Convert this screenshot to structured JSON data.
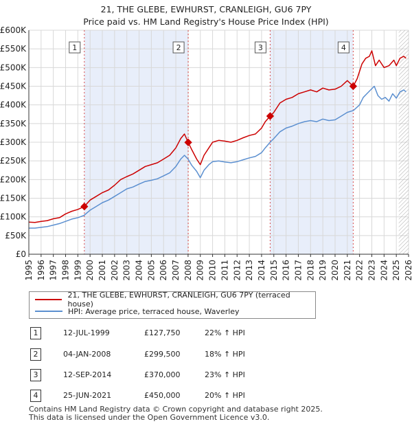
{
  "header": {
    "title_line1": "21, THE GLEBE, EWHURST, CRANLEIGH, GU6 7PY",
    "title_line2": "Price paid vs. HM Land Registry's House Price Index (HPI)"
  },
  "colors": {
    "property_line": "#cc0000",
    "hpi_line": "#5b8fd0",
    "shade": "#e8eefa",
    "grid": "#d8d8d8",
    "sale_vline": "#cc0000",
    "marker_border": "#555555"
  },
  "chart_data": {
    "type": "line",
    "title": "Price paid vs. HM Land Registry's House Price Index (HPI)",
    "xlabel": "",
    "ylabel": "",
    "xlim": [
      1995,
      2026
    ],
    "ylim": [
      0,
      600000
    ],
    "x_ticks": [
      "1995",
      "1996",
      "1997",
      "1998",
      "1999",
      "2000",
      "2001",
      "2002",
      "2003",
      "2004",
      "2005",
      "2006",
      "2007",
      "2008",
      "2009",
      "2010",
      "2011",
      "2012",
      "2013",
      "2014",
      "2015",
      "2016",
      "2017",
      "2018",
      "2019",
      "2020",
      "2021",
      "2022",
      "2023",
      "2024",
      "2025",
      "2026"
    ],
    "y_ticks": [
      {
        "value": 0,
        "label": "£0"
      },
      {
        "value": 50000,
        "label": "£50K"
      },
      {
        "value": 100000,
        "label": "£100K"
      },
      {
        "value": 150000,
        "label": "£150K"
      },
      {
        "value": 200000,
        "label": "£200K"
      },
      {
        "value": 250000,
        "label": "£250K"
      },
      {
        "value": 300000,
        "label": "£300K"
      },
      {
        "value": 350000,
        "label": "£350K"
      },
      {
        "value": 400000,
        "label": "£400K"
      },
      {
        "value": 450000,
        "label": "£450K"
      },
      {
        "value": 500000,
        "label": "£500K"
      },
      {
        "value": 550000,
        "label": "£550K"
      },
      {
        "value": 600000,
        "label": "£600K"
      }
    ],
    "grid": true,
    "shaded_ranges": [
      [
        1999.53,
        2008.01
      ],
      [
        2014.7,
        2021.48
      ]
    ],
    "future_hatch_from": 2025.2,
    "series": [
      {
        "name": "21, THE GLEBE, EWHURST, CRANLEIGH, GU6 7PY (terraced house)",
        "color": "#cc0000",
        "x": [
          1995.0,
          1995.5,
          1996.0,
          1996.5,
          1997.0,
          1997.5,
          1998.0,
          1998.5,
          1999.0,
          1999.53,
          2000.0,
          2000.5,
          2001.0,
          2001.5,
          2002.0,
          2002.5,
          2003.0,
          2003.5,
          2004.0,
          2004.5,
          2005.0,
          2005.5,
          2006.0,
          2006.5,
          2007.0,
          2007.4,
          2007.7,
          2008.01,
          2008.3,
          2008.7,
          2009.0,
          2009.3,
          2009.7,
          2010.0,
          2010.5,
          2011.0,
          2011.5,
          2012.0,
          2012.5,
          2013.0,
          2013.5,
          2014.0,
          2014.3,
          2014.7,
          2015.0,
          2015.5,
          2016.0,
          2016.5,
          2017.0,
          2017.5,
          2018.0,
          2018.5,
          2019.0,
          2019.5,
          2020.0,
          2020.5,
          2021.0,
          2021.48,
          2021.8,
          2022.2,
          2022.5,
          2022.8,
          2023.0,
          2023.3,
          2023.6,
          2024.0,
          2024.4,
          2024.8,
          2025.0,
          2025.3,
          2025.6,
          2025.8
        ],
        "y": [
          86000,
          85000,
          88000,
          90000,
          95000,
          98000,
          108000,
          115000,
          120000,
          127750,
          145000,
          155000,
          165000,
          172000,
          185000,
          200000,
          208000,
          215000,
          225000,
          235000,
          240000,
          245000,
          255000,
          265000,
          285000,
          310000,
          322000,
          299500,
          280000,
          255000,
          240000,
          265000,
          285000,
          300000,
          305000,
          303000,
          300000,
          305000,
          312000,
          318000,
          322000,
          338000,
          355000,
          370000,
          380000,
          405000,
          415000,
          420000,
          430000,
          435000,
          440000,
          435000,
          445000,
          440000,
          442000,
          450000,
          465000,
          450000,
          470000,
          510000,
          525000,
          530000,
          545000,
          505000,
          520000,
          500000,
          505000,
          520000,
          505000,
          525000,
          530000,
          525000
        ]
      },
      {
        "name": "HPI: Average price, terraced house, Waverley",
        "color": "#5b8fd0",
        "x": [
          1995.0,
          1995.5,
          1996.0,
          1996.5,
          1997.0,
          1997.5,
          1998.0,
          1998.5,
          1999.0,
          1999.5,
          2000.0,
          2000.5,
          2001.0,
          2001.5,
          2002.0,
          2002.5,
          2003.0,
          2003.5,
          2004.0,
          2004.5,
          2005.0,
          2005.5,
          2006.0,
          2006.5,
          2007.0,
          2007.4,
          2007.7,
          2008.0,
          2008.3,
          2008.7,
          2009.0,
          2009.3,
          2009.7,
          2010.0,
          2010.5,
          2011.0,
          2011.5,
          2012.0,
          2012.5,
          2013.0,
          2013.5,
          2014.0,
          2014.3,
          2014.7,
          2015.0,
          2015.5,
          2016.0,
          2016.5,
          2017.0,
          2017.5,
          2018.0,
          2018.5,
          2019.0,
          2019.5,
          2020.0,
          2020.5,
          2021.0,
          2021.5,
          2022.0,
          2022.3,
          2022.6,
          2022.9,
          2023.2,
          2023.5,
          2023.8,
          2024.1,
          2024.4,
          2024.7,
          2025.0,
          2025.3,
          2025.6,
          2025.8
        ],
        "y": [
          70000,
          70000,
          72000,
          74000,
          78000,
          82000,
          88000,
          94000,
          98000,
          104000,
          118000,
          128000,
          138000,
          145000,
          155000,
          165000,
          175000,
          180000,
          188000,
          195000,
          198000,
          202000,
          210000,
          218000,
          235000,
          255000,
          265000,
          255000,
          238000,
          222000,
          205000,
          225000,
          240000,
          248000,
          250000,
          247000,
          245000,
          248000,
          253000,
          258000,
          262000,
          272000,
          285000,
          300000,
          310000,
          328000,
          338000,
          343000,
          350000,
          355000,
          358000,
          355000,
          362000,
          358000,
          360000,
          370000,
          380000,
          385000,
          400000,
          420000,
          430000,
          440000,
          450000,
          425000,
          415000,
          420000,
          410000,
          430000,
          418000,
          435000,
          440000,
          435000
        ]
      }
    ],
    "sales": [
      {
        "id": "1",
        "date": "12-JUL-1999",
        "x": 1999.53,
        "price_label": "£127,750",
        "price": 127750,
        "hpi_pct": "22% ↑ HPI"
      },
      {
        "id": "2",
        "date": "04-JAN-2008",
        "x": 2008.01,
        "price_label": "£299,500",
        "price": 299500,
        "hpi_pct": "18% ↑ HPI"
      },
      {
        "id": "3",
        "date": "12-SEP-2014",
        "x": 2014.7,
        "price_label": "£370,000",
        "price": 370000,
        "hpi_pct": "23% ↑ HPI"
      },
      {
        "id": "4",
        "date": "25-JUN-2021",
        "x": 2021.48,
        "price_label": "£450,000",
        "price": 450000,
        "hpi_pct": "20% ↑ HPI"
      }
    ]
  },
  "legend": {
    "property_label": "21, THE GLEBE, EWHURST, CRANLEIGH, GU6 7PY (terraced house)",
    "hpi_label": "HPI: Average price, terraced house, Waverley"
  },
  "footer": {
    "line1": "Contains HM Land Registry data © Crown copyright and database right 2025.",
    "line2": "This data is licensed under the Open Government Licence v3.0."
  }
}
